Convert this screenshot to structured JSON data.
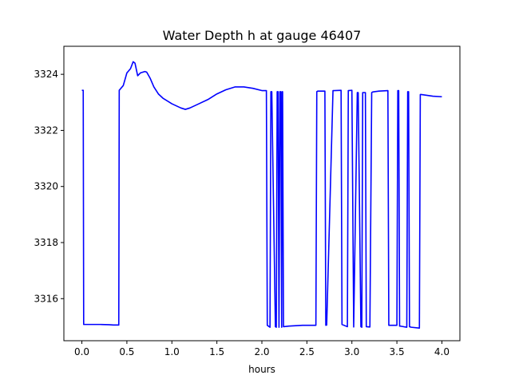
{
  "chart_data": {
    "type": "line",
    "title": "Water Depth h at gauge 46407",
    "xlabel": "hours",
    "ylabel": "",
    "xlim": [
      -0.2,
      4.2
    ],
    "ylim": [
      3314.5,
      3325.0
    ],
    "xticks": [
      0.0,
      0.5,
      1.0,
      1.5,
      2.0,
      2.5,
      3.0,
      3.5,
      4.0
    ],
    "xtick_labels": [
      "0.0",
      "0.5",
      "1.0",
      "1.5",
      "2.0",
      "2.5",
      "3.0",
      "3.5",
      "4.0"
    ],
    "yticks": [
      3316,
      3318,
      3320,
      3322,
      3324
    ],
    "ytick_labels": [
      "3316",
      "3318",
      "3320",
      "3322",
      "3324"
    ],
    "grid": false,
    "series": [
      {
        "color": "#0000ff",
        "x": [
          0.0,
          0.015,
          0.02,
          0.1,
          0.2,
          0.3,
          0.35,
          0.41,
          0.415,
          0.42,
          0.46,
          0.5,
          0.54,
          0.57,
          0.59,
          0.62,
          0.65,
          0.7,
          0.72,
          0.76,
          0.8,
          0.85,
          0.9,
          1.0,
          1.1,
          1.15,
          1.2,
          1.3,
          1.4,
          1.5,
          1.6,
          1.7,
          1.8,
          1.9,
          2.0,
          2.05,
          2.06,
          2.09,
          2.1,
          2.11,
          2.15,
          2.16,
          2.17,
          2.18,
          2.19,
          2.2,
          2.21,
          2.22,
          2.225,
          2.23,
          2.24,
          2.3,
          2.45,
          2.6,
          2.61,
          2.62,
          2.7,
          2.71,
          2.72,
          2.79,
          2.8,
          2.88,
          2.89,
          2.95,
          2.96,
          3.0,
          3.02,
          3.06,
          3.07,
          3.1,
          3.11,
          3.12,
          3.15,
          3.16,
          3.2,
          3.22,
          3.23,
          3.25,
          3.3,
          3.4,
          3.41,
          3.5,
          3.51,
          3.52,
          3.53,
          3.54,
          3.61,
          3.62,
          3.63,
          3.64,
          3.66,
          3.75,
          3.76,
          3.77,
          3.9,
          4.0
        ],
        "y": [
          3323.43,
          3323.43,
          3315.08,
          3315.08,
          3315.08,
          3315.07,
          3315.06,
          3315.06,
          3323.43,
          3323.45,
          3323.6,
          3324.05,
          3324.2,
          3324.45,
          3324.4,
          3323.95,
          3324.05,
          3324.1,
          3324.08,
          3323.85,
          3323.55,
          3323.3,
          3323.15,
          3322.95,
          3322.8,
          3322.75,
          3322.8,
          3322.95,
          3323.1,
          3323.3,
          3323.45,
          3323.55,
          3323.55,
          3323.5,
          3323.42,
          3323.42,
          3315.05,
          3314.98,
          3323.38,
          3323.38,
          3315.0,
          3314.98,
          3323.38,
          3323.38,
          3314.98,
          3323.38,
          3323.38,
          3314.98,
          3323.38,
          3323.38,
          3315.0,
          3315.02,
          3315.05,
          3315.05,
          3323.38,
          3323.4,
          3323.4,
          3315.05,
          3315.06,
          3323.42,
          3323.42,
          3323.43,
          3315.08,
          3315.0,
          3323.42,
          3323.43,
          3314.99,
          3323.35,
          3323.35,
          3315.0,
          3314.98,
          3323.35,
          3323.35,
          3315.0,
          3314.99,
          3323.35,
          3323.37,
          3323.38,
          3323.4,
          3323.42,
          3315.05,
          3315.05,
          3323.42,
          3323.42,
          3315.02,
          3315.02,
          3314.98,
          3323.38,
          3323.38,
          3315.0,
          3314.98,
          3314.95,
          3323.28,
          3323.28,
          3323.22,
          3323.2
        ]
      }
    ]
  }
}
